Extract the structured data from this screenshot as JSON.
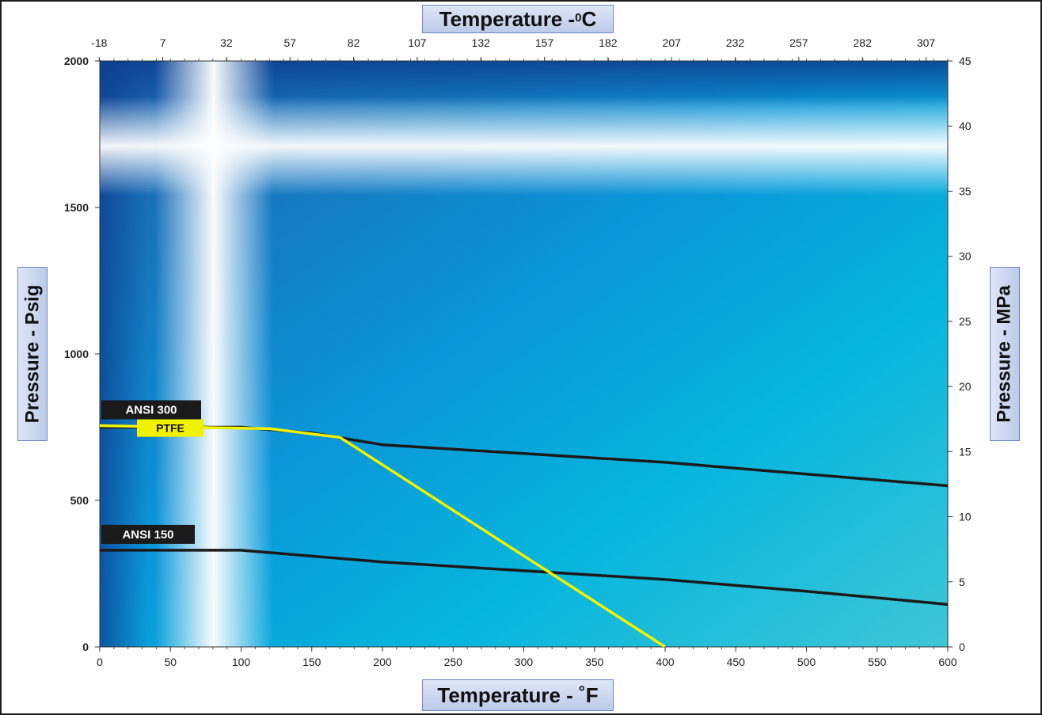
{
  "chart_data": {
    "type": "line",
    "x_bottom": {
      "label": "Temperature  -  ˚F",
      "range": [
        0,
        600
      ],
      "ticks": [
        0,
        50,
        100,
        150,
        200,
        250,
        300,
        350,
        400,
        450,
        500,
        550,
        600
      ]
    },
    "x_top": {
      "label_main": "Temperature  -  ",
      "label_sup": "0",
      "label_unit": "C",
      "ticks": [
        -18,
        7,
        32,
        57,
        82,
        107,
        132,
        157,
        182,
        207,
        232,
        257,
        282,
        307
      ]
    },
    "y_left": {
      "label": "Pressure - Psig",
      "range": [
        0,
        2000
      ],
      "ticks": [
        0,
        500,
        1000,
        1500,
        2000
      ]
    },
    "y_right": {
      "label": "Pressure - MPa",
      "range": [
        0,
        45
      ],
      "ticks": [
        0,
        5,
        10,
        15,
        20,
        25,
        30,
        35,
        40,
        45
      ]
    },
    "series": [
      {
        "name": "ANSI 300",
        "color": "#1a1a1a",
        "points": [
          [
            0,
            750
          ],
          [
            100,
            750
          ],
          [
            150,
            730
          ],
          [
            200,
            690
          ],
          [
            300,
            660
          ],
          [
            400,
            630
          ],
          [
            500,
            590
          ],
          [
            600,
            550
          ]
        ]
      },
      {
        "name": "ANSI 150",
        "color": "#1a1a1a",
        "points": [
          [
            0,
            330
          ],
          [
            100,
            330
          ],
          [
            200,
            290
          ],
          [
            300,
            260
          ],
          [
            400,
            230
          ],
          [
            500,
            190
          ],
          [
            600,
            145
          ]
        ]
      },
      {
        "name": "PTFE",
        "color": "#f2f200",
        "points": [
          [
            0,
            755
          ],
          [
            120,
            745
          ],
          [
            170,
            715
          ],
          [
            400,
            0
          ]
        ]
      }
    ],
    "labels": [
      {
        "text": "ANSI 300",
        "series": 0
      },
      {
        "text": "PTFE",
        "series": 2
      },
      {
        "text": "ANSI 150",
        "series": 1
      }
    ]
  }
}
